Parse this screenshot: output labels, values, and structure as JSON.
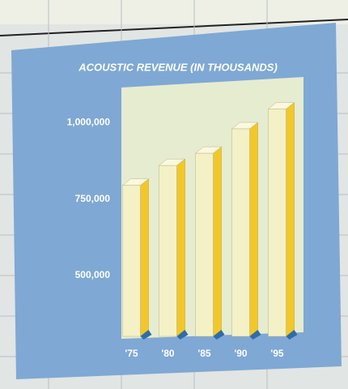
{
  "chart_data": {
    "type": "bar3d",
    "title": "ACOUSTIC REVENUE (IN THOUSANDS)",
    "categories": [
      "'75",
      "'80",
      "'85",
      "'90",
      "'95"
    ],
    "values": [
      795000,
      860000,
      900000,
      980000,
      1045000
    ],
    "color": "#f2c72a",
    "ylim": [
      300000,
      1150000
    ],
    "yticks": [
      {
        "value": 500000,
        "label": "500,000"
      },
      {
        "value": 750000,
        "label": "750,000"
      },
      {
        "value": 1000000,
        "label": "1,000,000"
      }
    ]
  }
}
